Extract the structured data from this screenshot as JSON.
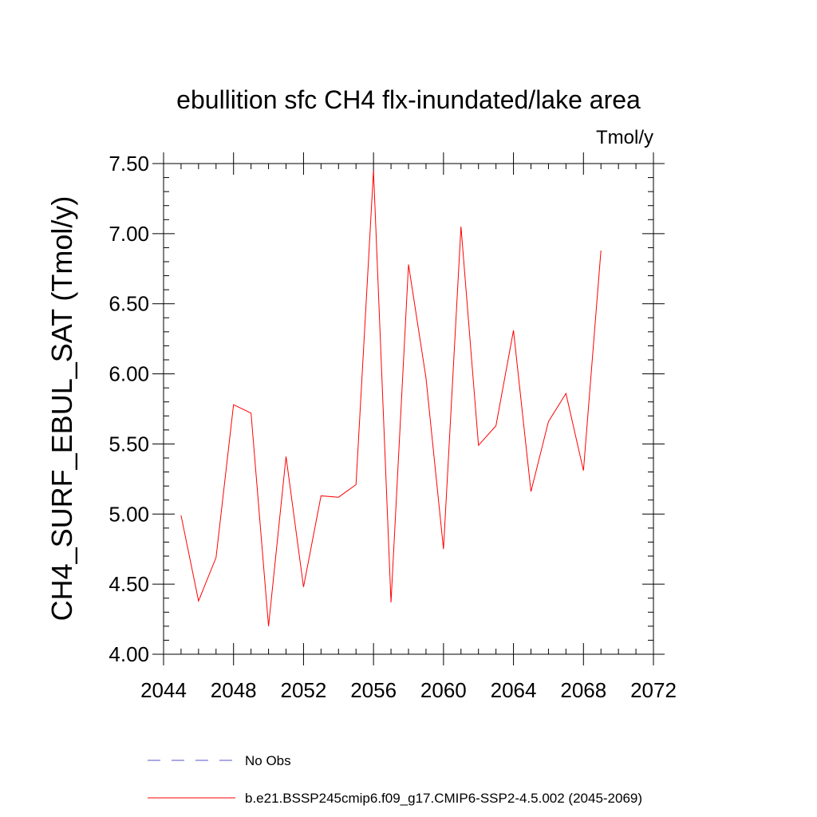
{
  "chart_data": {
    "type": "line",
    "title": "ebullition sfc CH4 flx-inundated/lake area",
    "units": "Tmol/y",
    "xlabel": "",
    "ylabel": "CH4_SURF_EBUL_SAT  (Tmol/y)",
    "xlim": [
      2044,
      2072
    ],
    "ylim": [
      4.0,
      7.5
    ],
    "x_ticks": [
      2044,
      2048,
      2052,
      2056,
      2060,
      2064,
      2068,
      2072
    ],
    "x_tick_labels": [
      "2044",
      "2048",
      "2052",
      "2056",
      "2060",
      "2064",
      "2068",
      "2072"
    ],
    "y_ticks": [
      4.0,
      4.5,
      5.0,
      5.5,
      6.0,
      6.5,
      7.0,
      7.5
    ],
    "y_tick_labels": [
      "4.00",
      "4.50",
      "5.00",
      "5.50",
      "6.00",
      "6.50",
      "7.00",
      "7.50"
    ],
    "series": [
      {
        "name": "b.e21.BSSP245cmip6.f09_g17.CMIP6-SSP2-4.5.002 (2045-2069)",
        "color": "#ff0000",
        "dash": "solid",
        "x": [
          2045,
          2046,
          2047,
          2048,
          2049,
          2050,
          2051,
          2052,
          2053,
          2054,
          2055,
          2056,
          2057,
          2058,
          2059,
          2060,
          2061,
          2062,
          2063,
          2064,
          2065,
          2066,
          2067,
          2068,
          2069
        ],
        "values": [
          4.99,
          4.38,
          4.69,
          5.78,
          5.72,
          4.2,
          5.41,
          4.48,
          5.13,
          5.12,
          5.21,
          7.45,
          4.37,
          6.78,
          5.97,
          4.75,
          7.05,
          5.49,
          5.63,
          6.31,
          5.16,
          5.66,
          5.86,
          5.31,
          6.88
        ]
      },
      {
        "name": "No Obs",
        "color": "#5555cc",
        "dash": "dashed",
        "x": [],
        "values": []
      }
    ],
    "legend_position": "bottom"
  }
}
